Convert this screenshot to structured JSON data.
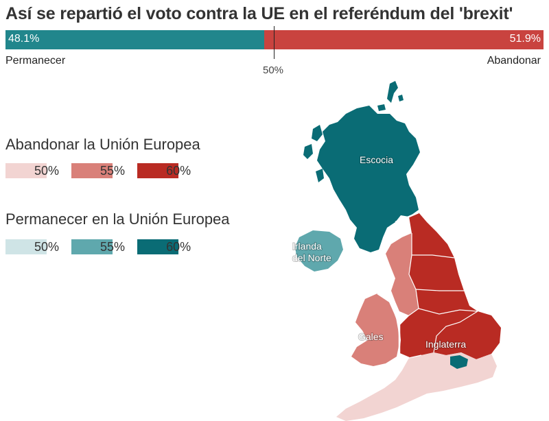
{
  "title": "Así se repartió el voto contra la UE en el referéndum del 'brexit'",
  "summary_bar": {
    "remain_value": "48.1%",
    "leave_value": "51.9%",
    "remain_fraction": 0.481,
    "leave_fraction": 0.519,
    "remain_label": "Permanecer",
    "leave_label": "Abandonar",
    "midpoint_label": "50%",
    "remain_color": "#21868c",
    "leave_color": "#c9433f"
  },
  "legend": {
    "leave": {
      "title": "Abandonar la Unión Europea",
      "items": [
        {
          "label": "50%",
          "color": "#f2d4d2"
        },
        {
          "label": "55%",
          "color": "#d98079"
        },
        {
          "label": "60%",
          "color": "#b92b23"
        }
      ]
    },
    "remain": {
      "title": "Permanecer en la Unión Europea",
      "items": [
        {
          "label": "50%",
          "color": "#cfe4e6"
        },
        {
          "label": "55%",
          "color": "#5fa8ad"
        },
        {
          "label": "60%",
          "color": "#0a6c75"
        }
      ]
    }
  },
  "map": {
    "regions": [
      {
        "name": "Escocia",
        "category": "remain-60",
        "color": "#0a6c75"
      },
      {
        "name": "Irlanda del Norte",
        "category": "remain-55",
        "color": "#5fa8ad"
      },
      {
        "name": "Gales",
        "category": "leave-55",
        "color": "#d98079"
      },
      {
        "name": "Inglaterra",
        "category": "leave-60",
        "color": "#b92b23"
      }
    ],
    "labels": {
      "scotland": "Escocia",
      "ni_line1": "Irlanda",
      "ni_line2": "del Norte",
      "wales": "Gales",
      "england": "Inglaterra"
    }
  }
}
